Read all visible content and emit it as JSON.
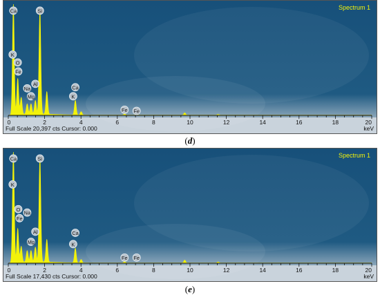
{
  "chart_data": [
    {
      "type": "line",
      "panel_label": "d",
      "spectrum_label": "Spectrum 1",
      "footer_text": "Full Scale 20,397 cts Cursor: 0.000",
      "xlabel": "keV",
      "xlim": [
        0,
        20
      ],
      "xticks": [
        0,
        2,
        4,
        6,
        8,
        10,
        12,
        14,
        16,
        18,
        20
      ],
      "colors": {
        "background": "#17507a",
        "trace": "#f2f20a",
        "label_text": "#f2f20a",
        "axis": "#111111"
      },
      "peaks": [
        {
          "x": 0.28,
          "y": 0.98
        },
        {
          "x": 0.52,
          "y": 0.32
        },
        {
          "x": 0.71,
          "y": 0.15
        },
        {
          "x": 1.04,
          "y": 0.09
        },
        {
          "x": 1.25,
          "y": 0.09
        },
        {
          "x": 1.49,
          "y": 0.12
        },
        {
          "x": 1.74,
          "y": 0.93
        },
        {
          "x": 2.12,
          "y": 0.2
        },
        {
          "x": 3.69,
          "y": 0.13
        },
        {
          "x": 4.01,
          "y": 0.03
        },
        {
          "x": 6.4,
          "y": 0.01
        },
        {
          "x": 9.71,
          "y": 0.02
        },
        {
          "x": 11.55,
          "y": 0.006
        }
      ],
      "element_labels": [
        {
          "text": "Ca",
          "x": 0.28,
          "y": 0.93
        },
        {
          "text": "Si",
          "x": 1.74,
          "y": 0.93
        },
        {
          "text": "K",
          "x": 0.24,
          "y": 0.54
        },
        {
          "text": "O",
          "x": 0.52,
          "y": 0.47
        },
        {
          "text": "Fe",
          "x": 0.55,
          "y": 0.39
        },
        {
          "text": "Na",
          "x": 1.04,
          "y": 0.24
        },
        {
          "text": "Al",
          "x": 1.49,
          "y": 0.28
        },
        {
          "text": "Mg",
          "x": 1.25,
          "y": 0.17
        },
        {
          "text": "Ca",
          "x": 3.69,
          "y": 0.25
        },
        {
          "text": "K",
          "x": 3.57,
          "y": 0.17
        },
        {
          "text": "Fe",
          "x": 6.4,
          "y": 0.05
        },
        {
          "text": "Fe",
          "x": 7.06,
          "y": 0.04
        }
      ]
    },
    {
      "type": "line",
      "panel_label": "e",
      "spectrum_label": "Spectrum 1",
      "footer_text": "Full Scale 17,430 cts Cursor: 0.000",
      "xlabel": "keV",
      "xlim": [
        0,
        20
      ],
      "xticks": [
        0,
        2,
        4,
        6,
        8,
        10,
        12,
        14,
        16,
        18,
        20
      ],
      "colors": {
        "background": "#17507a",
        "trace": "#f2f20a",
        "label_text": "#f2f20a",
        "axis": "#111111"
      },
      "peaks": [
        {
          "x": 0.28,
          "y": 0.98
        },
        {
          "x": 0.52,
          "y": 0.3
        },
        {
          "x": 0.71,
          "y": 0.14
        },
        {
          "x": 1.04,
          "y": 0.1
        },
        {
          "x": 1.25,
          "y": 0.1
        },
        {
          "x": 1.49,
          "y": 0.13
        },
        {
          "x": 1.74,
          "y": 0.93
        },
        {
          "x": 2.12,
          "y": 0.2
        },
        {
          "x": 3.69,
          "y": 0.13
        },
        {
          "x": 4.01,
          "y": 0.03
        },
        {
          "x": 6.4,
          "y": 0.012
        },
        {
          "x": 9.71,
          "y": 0.025
        },
        {
          "x": 11.55,
          "y": 0.008
        }
      ],
      "element_labels": [
        {
          "text": "Ca",
          "x": 0.28,
          "y": 0.93
        },
        {
          "text": "Si",
          "x": 1.74,
          "y": 0.93
        },
        {
          "text": "K",
          "x": 0.24,
          "y": 0.7
        },
        {
          "text": "O",
          "x": 0.55,
          "y": 0.48
        },
        {
          "text": "Na",
          "x": 1.04,
          "y": 0.45
        },
        {
          "text": "Fe",
          "x": 0.62,
          "y": 0.4
        },
        {
          "text": "Al",
          "x": 1.49,
          "y": 0.28
        },
        {
          "text": "Mg",
          "x": 1.25,
          "y": 0.19
        },
        {
          "text": "Ca",
          "x": 3.69,
          "y": 0.27
        },
        {
          "text": "K",
          "x": 3.57,
          "y": 0.17
        },
        {
          "text": "Fe",
          "x": 6.4,
          "y": 0.05
        },
        {
          "text": "Fe",
          "x": 7.06,
          "y": 0.05
        }
      ]
    }
  ]
}
